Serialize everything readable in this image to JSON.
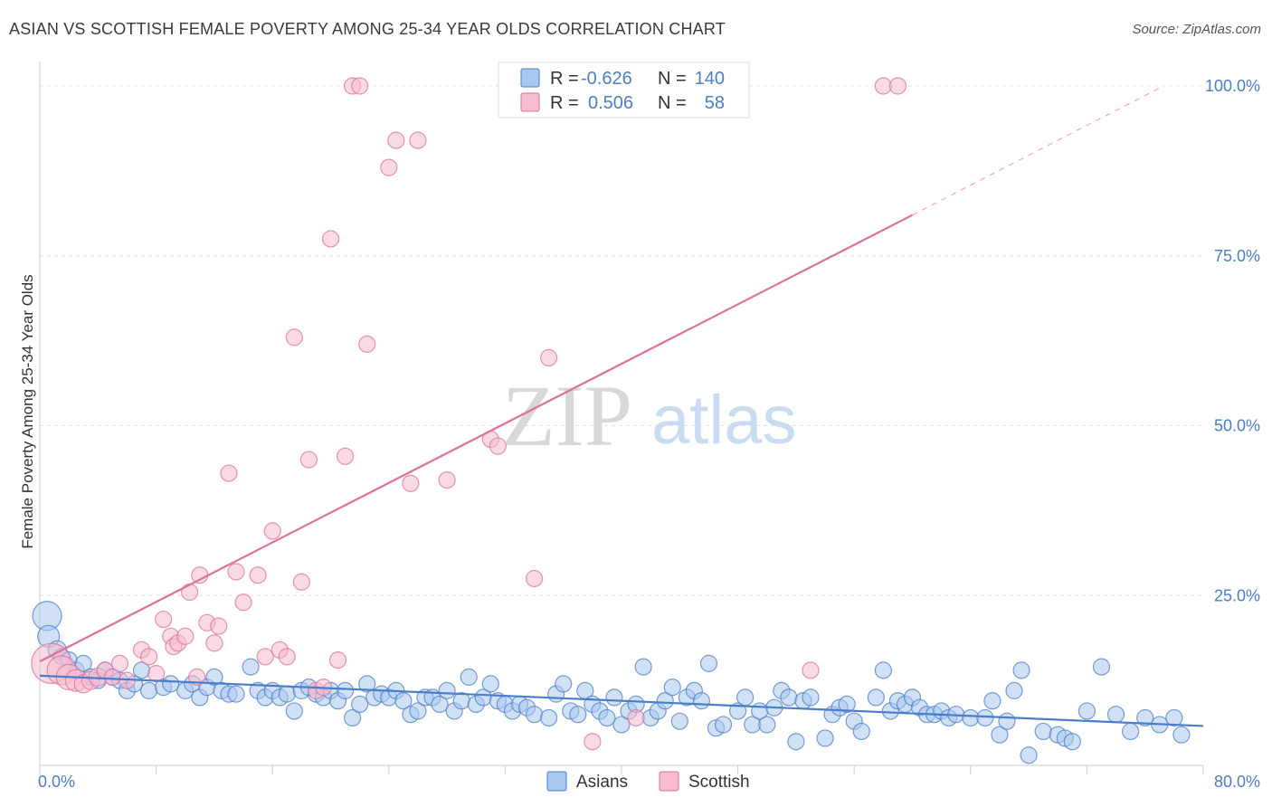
{
  "title": "ASIAN VS SCOTTISH FEMALE POVERTY AMONG 25-34 YEAR OLDS CORRELATION CHART",
  "source": "Source: ZipAtlas.com",
  "watermark": {
    "zip": "ZIP",
    "atlas": "atlas"
  },
  "colors": {
    "asian": "#4a7ec9",
    "asian_fill": "#a9c8ef",
    "scottish": "#e07095",
    "scottish_fill": "#f6bcd0"
  },
  "legend": {
    "r_label": "R =",
    "n_label": "N =",
    "asian_r": "-0.626",
    "asian_n": "140",
    "scottish_r": "0.506",
    "scottish_n": "58"
  },
  "chart_data": {
    "type": "scatter",
    "title": "ASIAN VS SCOTTISH FEMALE POVERTY AMONG 25-34 YEAR OLDS CORRELATION CHART",
    "xlabel": "",
    "ylabel": "Female Poverty Among 25-34 Year Olds",
    "xlim": [
      0,
      80
    ],
    "ylim": [
      0,
      102
    ],
    "x_tick_labels": [
      "0.0%",
      "80.0%"
    ],
    "y_ticks": [
      25,
      50,
      75,
      100
    ],
    "y_tick_labels": [
      "25.0%",
      "50.0%",
      "75.0%",
      "100.0%"
    ],
    "legend_entries": [
      "Asians",
      "Scottish"
    ],
    "series": [
      {
        "name": "Asians",
        "r": -0.626,
        "n": 140,
        "trend": {
          "x0": 0,
          "y0": 13.2,
          "x1": 80,
          "y1": 5.8
        },
        "points": [
          [
            0.5,
            22,
            16
          ],
          [
            0.6,
            19,
            12
          ],
          [
            1.2,
            17,
            10
          ],
          [
            1.5,
            16,
            9
          ],
          [
            2,
            15.5,
            9
          ],
          [
            2.5,
            14,
            9
          ],
          [
            3,
            15,
            9
          ],
          [
            3.5,
            13,
            9
          ],
          [
            4,
            12.5,
            9
          ],
          [
            4.5,
            14,
            9
          ],
          [
            5,
            13,
            9
          ],
          [
            5.5,
            12.5,
            9
          ],
          [
            6,
            11,
            9
          ],
          [
            6.5,
            12,
            9
          ],
          [
            7,
            14,
            9
          ],
          [
            7.5,
            11,
            9
          ],
          [
            8.5,
            11.5,
            9
          ],
          [
            9,
            12,
            9
          ],
          [
            10,
            11,
            9
          ],
          [
            10.5,
            12,
            9
          ],
          [
            11,
            10,
            9
          ],
          [
            11.5,
            11.5,
            9
          ],
          [
            12,
            13,
            9
          ],
          [
            12.5,
            11,
            9
          ],
          [
            13,
            10.5,
            9
          ],
          [
            13.5,
            10.5,
            9
          ],
          [
            14.5,
            14.5,
            9
          ],
          [
            15,
            11,
            9
          ],
          [
            15.5,
            10,
            9
          ],
          [
            16,
            11,
            9
          ],
          [
            16.5,
            10,
            9
          ],
          [
            17,
            10.5,
            9
          ],
          [
            17.5,
            8,
            9
          ],
          [
            18,
            11,
            9
          ],
          [
            18.5,
            11.5,
            9
          ],
          [
            19,
            10.5,
            9
          ],
          [
            19.5,
            10,
            9
          ],
          [
            20,
            11,
            9
          ],
          [
            20.5,
            9.5,
            9
          ],
          [
            21,
            11,
            9
          ],
          [
            21.5,
            7,
            9
          ],
          [
            22,
            9,
            9
          ],
          [
            22.5,
            12,
            9
          ],
          [
            23,
            10,
            9
          ],
          [
            23.5,
            10.5,
            9
          ],
          [
            24,
            10,
            9
          ],
          [
            24.5,
            11,
            9
          ],
          [
            25,
            9.5,
            9
          ],
          [
            25.5,
            7.5,
            9
          ],
          [
            26,
            8,
            9
          ],
          [
            26.5,
            10,
            9
          ],
          [
            27,
            10,
            9
          ],
          [
            27.5,
            9,
            9
          ],
          [
            28,
            11,
            9
          ],
          [
            28.5,
            8,
            9
          ],
          [
            29,
            9.5,
            9
          ],
          [
            29.5,
            13,
            9
          ],
          [
            30,
            9,
            9
          ],
          [
            30.5,
            10,
            9
          ],
          [
            31,
            12,
            9
          ],
          [
            31.5,
            9.5,
            9
          ],
          [
            32,
            9,
            9
          ],
          [
            32.5,
            8,
            9
          ],
          [
            33,
            9,
            9
          ],
          [
            33.5,
            8.5,
            9
          ],
          [
            34,
            7.5,
            9
          ],
          [
            35,
            7,
            9
          ],
          [
            35.5,
            10.5,
            9
          ],
          [
            36,
            12,
            9
          ],
          [
            36.5,
            8,
            9
          ],
          [
            37,
            7.5,
            9
          ],
          [
            37.5,
            11,
            9
          ],
          [
            38,
            9,
            9
          ],
          [
            38.5,
            8,
            9
          ],
          [
            39,
            7,
            9
          ],
          [
            39.5,
            10,
            9
          ],
          [
            40,
            6,
            9
          ],
          [
            40.5,
            8,
            9
          ],
          [
            41,
            9,
            9
          ],
          [
            41.5,
            14.5,
            9
          ],
          [
            42,
            7,
            9
          ],
          [
            42.5,
            8,
            9
          ],
          [
            43,
            9.5,
            9
          ],
          [
            43.5,
            11.5,
            9
          ],
          [
            44,
            6.5,
            9
          ],
          [
            44.5,
            10,
            9
          ],
          [
            45,
            11,
            9
          ],
          [
            45.5,
            9.5,
            9
          ],
          [
            46,
            15,
            9
          ],
          [
            46.5,
            5.5,
            9
          ],
          [
            47,
            6,
            9
          ],
          [
            48,
            8,
            9
          ],
          [
            48.5,
            10,
            9
          ],
          [
            49,
            6,
            9
          ],
          [
            49.5,
            8,
            9
          ],
          [
            50,
            6,
            9
          ],
          [
            50.5,
            8.5,
            9
          ],
          [
            51,
            11,
            9
          ],
          [
            51.5,
            10,
            9
          ],
          [
            52,
            3.5,
            9
          ],
          [
            52.5,
            9.5,
            9
          ],
          [
            53,
            10,
            9
          ],
          [
            54,
            4,
            9
          ],
          [
            54.5,
            7.5,
            9
          ],
          [
            55,
            8.5,
            9
          ],
          [
            55.5,
            9,
            9
          ],
          [
            56,
            6.5,
            9
          ],
          [
            56.5,
            5,
            9
          ],
          [
            57.5,
            10,
            9
          ],
          [
            58,
            14,
            9
          ],
          [
            58.5,
            8,
            9
          ],
          [
            59,
            9.5,
            9
          ],
          [
            59.5,
            9,
            9
          ],
          [
            60,
            10,
            9
          ],
          [
            60.5,
            8.5,
            9
          ],
          [
            61,
            7.5,
            9
          ],
          [
            61.5,
            7.5,
            9
          ],
          [
            62,
            8,
            9
          ],
          [
            62.5,
            7,
            9
          ],
          [
            63,
            7.5,
            9
          ],
          [
            64,
            7,
            9
          ],
          [
            65,
            7,
            9
          ],
          [
            65.5,
            9.5,
            9
          ],
          [
            66,
            4.5,
            9
          ],
          [
            66.5,
            6.5,
            9
          ],
          [
            67,
            11,
            9
          ],
          [
            67.5,
            14,
            9
          ],
          [
            68,
            1.5,
            9
          ],
          [
            69,
            5,
            9
          ],
          [
            70,
            4.5,
            9
          ],
          [
            70.5,
            4,
            9
          ],
          [
            71,
            3.5,
            9
          ],
          [
            72,
            8,
            9
          ],
          [
            73,
            14.5,
            9
          ],
          [
            74,
            7.5,
            9
          ],
          [
            75,
            5,
            9
          ],
          [
            76,
            7,
            9
          ],
          [
            77,
            6,
            9
          ],
          [
            78,
            7,
            9
          ],
          [
            78.5,
            4.5,
            9
          ]
        ]
      },
      {
        "name": "Scottish",
        "r": 0.506,
        "n": 58,
        "trend": {
          "x0": 0,
          "y0": 15.3,
          "x1": 60,
          "y1": 81
        },
        "trend_dashed": {
          "x0": 60,
          "y0": 81,
          "x1": 77,
          "y1": 99.7
        },
        "points": [
          [
            0.8,
            15,
            22
          ],
          [
            1.5,
            14,
            16
          ],
          [
            2,
            13,
            14
          ],
          [
            2.5,
            12.5,
            12
          ],
          [
            3,
            12,
            10
          ],
          [
            3.5,
            12.5,
            10
          ],
          [
            4,
            13,
            10
          ],
          [
            4.5,
            14,
            9
          ],
          [
            5,
            13,
            9
          ],
          [
            5.5,
            15,
            9
          ],
          [
            6,
            12.5,
            9
          ],
          [
            7,
            17,
            9
          ],
          [
            7.5,
            16,
            9
          ],
          [
            8,
            13.5,
            9
          ],
          [
            8.5,
            21.5,
            9
          ],
          [
            9,
            19,
            9
          ],
          [
            9.2,
            17.5,
            9
          ],
          [
            9.5,
            18,
            9
          ],
          [
            10,
            19,
            9
          ],
          [
            10.3,
            25.5,
            9
          ],
          [
            10.8,
            13,
            9
          ],
          [
            11,
            28,
            9
          ],
          [
            11.5,
            21,
            9
          ],
          [
            12,
            18,
            9
          ],
          [
            12.3,
            20.5,
            9
          ],
          [
            13,
            43,
            9
          ],
          [
            13.5,
            28.5,
            9
          ],
          [
            14,
            24,
            9
          ],
          [
            15,
            28,
            9
          ],
          [
            15.5,
            16,
            9
          ],
          [
            16,
            34.5,
            9
          ],
          [
            16.5,
            17,
            9
          ],
          [
            17,
            16,
            9
          ],
          [
            17.5,
            63,
            9
          ],
          [
            18,
            27,
            9
          ],
          [
            18.5,
            45,
            9
          ],
          [
            19,
            11,
            9
          ],
          [
            19.5,
            11.5,
            9
          ],
          [
            20,
            77.5,
            9
          ],
          [
            20.5,
            15.5,
            9
          ],
          [
            21,
            45.5,
            9
          ],
          [
            21.5,
            100,
            9
          ],
          [
            22,
            100,
            9
          ],
          [
            22.5,
            62,
            9
          ],
          [
            24,
            88,
            9
          ],
          [
            24.5,
            92,
            9
          ],
          [
            25.5,
            41.5,
            9
          ],
          [
            26,
            92,
            9
          ],
          [
            28,
            42,
            9
          ],
          [
            31,
            48,
            9
          ],
          [
            31.5,
            47,
            9
          ],
          [
            34,
            27.5,
            9
          ],
          [
            35,
            60,
            9
          ],
          [
            38,
            3.5,
            9
          ],
          [
            41,
            7,
            9
          ],
          [
            53,
            14,
            9
          ],
          [
            58,
            100,
            9
          ],
          [
            59,
            100,
            9
          ]
        ]
      }
    ]
  }
}
